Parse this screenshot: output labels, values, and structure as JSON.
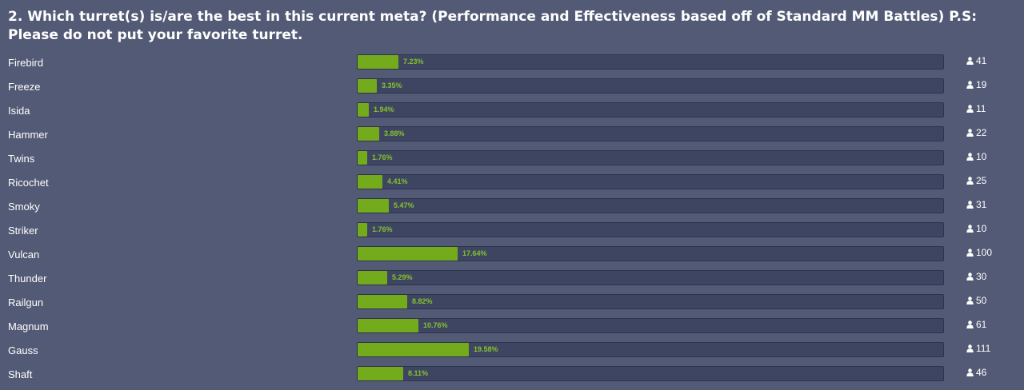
{
  "question": {
    "title": "2. Which turret(s) is/are the best in this current meta? (Performance and Effectiveness based off of Standard MM Battles) P.S: Please do not put your favorite turret."
  },
  "colors": {
    "background": "#535a75",
    "track": "#3e4562",
    "fill": "#73ab1d",
    "percent_text": "#86c22c"
  },
  "icons": {
    "vote": "user-icon"
  },
  "options": [
    {
      "label": "Firebird",
      "percent": "7.23%",
      "value": 7.23,
      "votes": "41"
    },
    {
      "label": "Freeze",
      "percent": "3.35%",
      "value": 3.35,
      "votes": "19"
    },
    {
      "label": "Isida",
      "percent": "1.94%",
      "value": 1.94,
      "votes": "11"
    },
    {
      "label": "Hammer",
      "percent": "3.88%",
      "value": 3.88,
      "votes": "22"
    },
    {
      "label": "Twins",
      "percent": "1.76%",
      "value": 1.76,
      "votes": "10"
    },
    {
      "label": "Ricochet",
      "percent": "4.41%",
      "value": 4.41,
      "votes": "25"
    },
    {
      "label": "Smoky",
      "percent": "5.47%",
      "value": 5.47,
      "votes": "31"
    },
    {
      "label": "Striker",
      "percent": "1.76%",
      "value": 1.76,
      "votes": "10"
    },
    {
      "label": "Vulcan",
      "percent": "17.64%",
      "value": 17.64,
      "votes": "100"
    },
    {
      "label": "Thunder",
      "percent": "5.29%",
      "value": 5.29,
      "votes": "30"
    },
    {
      "label": "Railgun",
      "percent": "8.82%",
      "value": 8.82,
      "votes": "50"
    },
    {
      "label": "Magnum",
      "percent": "10.76%",
      "value": 10.76,
      "votes": "61"
    },
    {
      "label": "Gauss",
      "percent": "19.58%",
      "value": 19.58,
      "votes": "111"
    },
    {
      "label": "Shaft",
      "percent": "8.11%",
      "value": 8.11,
      "votes": "46"
    }
  ]
}
